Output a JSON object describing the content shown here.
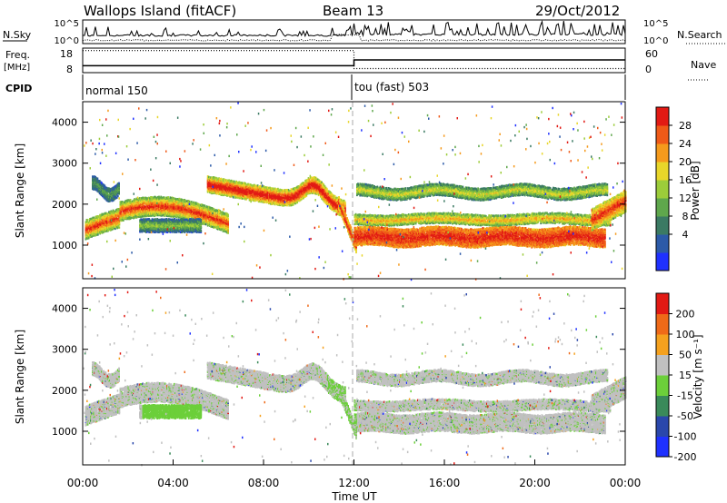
{
  "header": {
    "station": "Wallops Island (fitACF)",
    "beam": "Beam 13",
    "date": "29/Oct/2012"
  },
  "colors": {
    "power": [
      "#1f31ff",
      "#2c5aa8",
      "#3b7a63",
      "#5fa74c",
      "#9ccc3a",
      "#e8d62a",
      "#f59a1c",
      "#ef5a18",
      "#e21a14"
    ],
    "velocity": [
      "#e21a14",
      "#ef6a18",
      "#f5a11e",
      "#c0c0c0",
      "#6ccf3a",
      "#3a8a5a",
      "#2a47ab",
      "#1f31ff"
    ]
  },
  "chart_data": [
    {
      "type": "line",
      "panel": "noise",
      "labels": {
        "left": "N.Sky",
        "right": "N.Search",
        "left_ticks": [
          "10^5",
          "10^0"
        ],
        "right_ticks": [
          "10^5",
          "10^0"
        ]
      },
      "series": [
        {
          "name": "N.Sky",
          "style": "solid"
        },
        {
          "name": "N.Search",
          "style": "dotted"
        }
      ]
    },
    {
      "type": "line",
      "panel": "freq-nave",
      "labels": {
        "left_top": "Freq.",
        "left_unit": "[MHz]",
        "right": "Nave",
        "left_ticks": [
          "18",
          "8"
        ],
        "right_ticks": [
          "60",
          "0"
        ]
      },
      "x": [
        "00:00",
        "12:00",
        "12:00",
        "24:00"
      ],
      "series": [
        {
          "name": "Freq.",
          "style": "solid",
          "values": [
            10.8,
            10.8,
            13.2,
            13.2
          ]
        },
        {
          "name": "Nave",
          "style": "dotted",
          "values": [
            54,
            54,
            10,
            10
          ]
        }
      ]
    },
    {
      "type": "table",
      "panel": "cpid",
      "label": "CPID",
      "segments": [
        {
          "start": "00:00",
          "name": "normal 150"
        },
        {
          "start": "12:00",
          "name": "tou (fast) 503"
        }
      ]
    },
    {
      "type": "heatmap",
      "panel": "power",
      "ylabel": "Slant Range [km]",
      "ylim": [
        180,
        4500
      ],
      "yticks": [
        "1000",
        "2000",
        "3000",
        "4000"
      ],
      "colorbar_label": "Power [dB]",
      "colorbar_ticks": [
        "4",
        "8",
        "12",
        "16",
        "20",
        "24",
        "28"
      ],
      "xlim": [
        0,
        24
      ]
    },
    {
      "type": "heatmap",
      "panel": "velocity",
      "ylabel": "Slant Range [km]",
      "ylim": [
        180,
        4500
      ],
      "yticks": [
        "1000",
        "2000",
        "3000",
        "4000"
      ],
      "colorbar_label": "Velocity [m s⁻¹]",
      "colorbar_ticks": [
        "200",
        "100",
        "50",
        "15",
        "-15",
        "-50",
        "-100",
        "-200"
      ],
      "xlim": [
        0,
        24
      ],
      "xlabel": "Time UT",
      "xticks": [
        "00:00",
        "04:00",
        "08:00",
        "12:00",
        "16:00",
        "20:00",
        "00:00"
      ]
    }
  ]
}
